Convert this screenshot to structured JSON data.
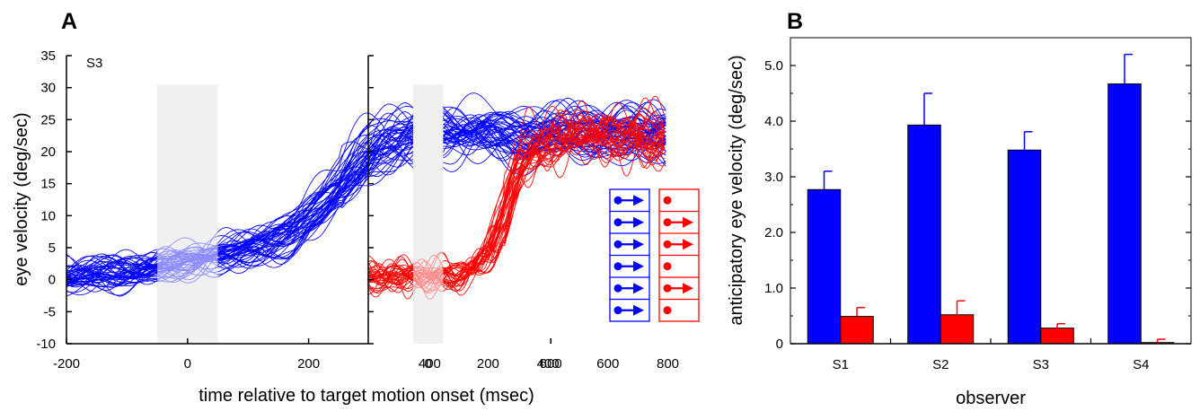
{
  "figure": {
    "panel_a_label": "A",
    "panel_b_label": "B"
  },
  "colors": {
    "predictable": "#0000ff",
    "random": "#ff0000",
    "shade": "#dddddd"
  },
  "chart_data": [
    {
      "type": "line",
      "panel": "A-left",
      "annotation": "S3",
      "ylabel": "eye velocity (deg/sec)",
      "xlabel": "time relative to target motion onset (msec)",
      "xlim": [
        -200,
        800
      ],
      "ylim": [
        -10,
        35
      ],
      "x_ticks": [
        -200,
        0,
        200,
        400,
        600
      ],
      "y_ticks": [
        -10,
        -5,
        0,
        5,
        10,
        15,
        20,
        25,
        30,
        35
      ],
      "shaded_window": {
        "x": [
          -50,
          50
        ],
        "y": [
          -10,
          30.5
        ]
      },
      "trace_color": "#0000ff",
      "n_traces": 50,
      "mean_trace": {
        "x": [
          -200,
          -100,
          -50,
          0,
          50,
          100,
          150,
          200,
          250,
          300,
          350,
          400,
          500,
          600,
          700,
          790
        ],
        "y": [
          0.5,
          1.0,
          2.0,
          3.0,
          4.0,
          5.0,
          6.5,
          10.0,
          15.0,
          20.0,
          22.5,
          23.0,
          23.0,
          23.0,
          22.8,
          23.0
        ]
      },
      "legend_icons": [
        "arrow",
        "arrow",
        "arrow",
        "arrow",
        "arrow",
        "arrow"
      ]
    },
    {
      "type": "line",
      "panel": "A-right",
      "xlim": [
        -200,
        800
      ],
      "ylim": [
        -10,
        35
      ],
      "x_ticks": [
        0,
        200,
        400,
        600,
        800
      ],
      "shaded_window": {
        "x": [
          -50,
          50
        ],
        "y": [
          -10,
          30.5
        ]
      },
      "trace_color": "#ff0000",
      "n_traces": 35,
      "mean_trace": {
        "x": [
          -200,
          -100,
          0,
          100,
          150,
          200,
          250,
          300,
          350,
          400,
          500,
          600,
          700,
          790
        ],
        "y": [
          0.5,
          0.5,
          0.5,
          0.8,
          1.5,
          4.0,
          10.0,
          17.0,
          20.5,
          22.0,
          22.5,
          22.3,
          22.5,
          22.3
        ]
      },
      "legend_icons": [
        "dot",
        "arrow",
        "arrow",
        "dot",
        "arrow",
        "dot"
      ]
    },
    {
      "type": "bar",
      "panel": "B",
      "xlabel": "observer",
      "ylabel": "anticipatory eye velocity (deg/sec)",
      "categories": [
        "S1",
        "S2",
        "S3",
        "S4"
      ],
      "ylim": [
        0,
        5.5
      ],
      "y_ticks": [
        "0",
        "1.0",
        "2.0",
        "3.0",
        "4.0",
        "5.0"
      ],
      "series": [
        {
          "values": [
            2.77,
            3.93,
            3.48,
            4.67
          ],
          "errors": [
            0.33,
            0.57,
            0.33,
            0.53
          ]
        },
        {
          "values": [
            0.49,
            0.52,
            0.28,
            0.02
          ],
          "errors": [
            0.16,
            0.25,
            0.08,
            0.06
          ]
        }
      ]
    }
  ]
}
